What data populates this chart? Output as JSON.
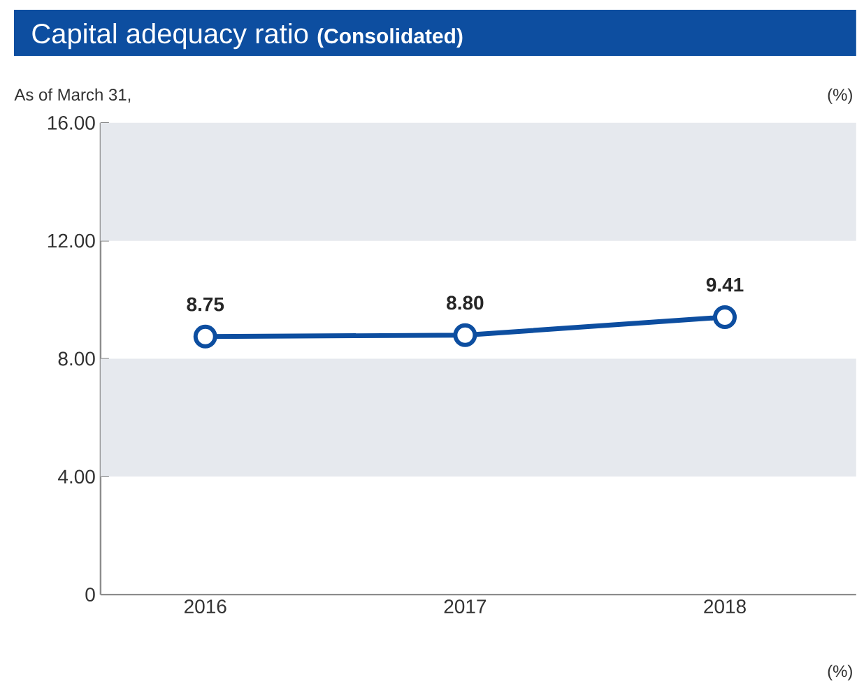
{
  "chart_data": {
    "type": "line",
    "title": "Capital adequacy ratio",
    "subtitle": "(Consolidated)",
    "annotations": [
      "As of March 31,",
      "(%)",
      "(%)"
    ],
    "categories": [
      "2016",
      "2017",
      "2018"
    ],
    "values": [
      8.75,
      8.8,
      9.41
    ],
    "color": "#0d4ea0",
    "value_labels": [
      "8.75",
      "8.80",
      "9.41"
    ],
    "ylim": [
      0,
      16
    ],
    "yticks": [
      0,
      {
        "value": 4,
        "label": "4.00"
      },
      {
        "value": 8,
        "label": "8.00"
      },
      {
        "value": 12,
        "label": "12.00"
      },
      {
        "value": 16,
        "label": "16.00"
      }
    ],
    "bands": [
      {
        "axis": "y",
        "from": 4,
        "to": 8,
        "color": "#e6e9ee"
      },
      {
        "axis": "y",
        "from": 12,
        "to": 16,
        "color": "#e6e9ee"
      }
    ],
    "marker": "circle",
    "line_style": "solid",
    "grid": false,
    "legend": false
  }
}
